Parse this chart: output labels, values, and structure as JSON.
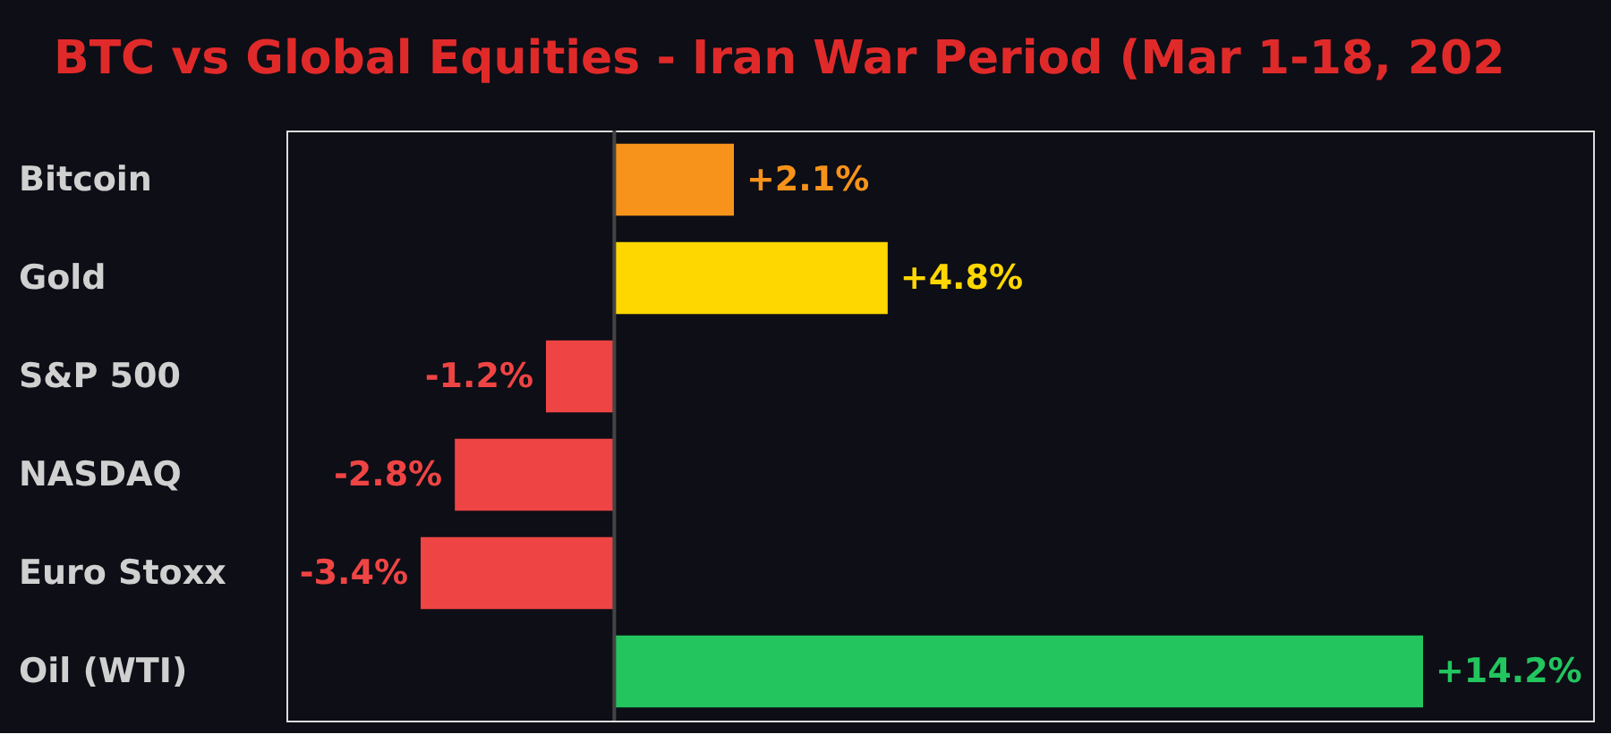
{
  "chart_data": {
    "type": "bar",
    "orientation": "horizontal",
    "title": "BTC vs Global Equities - Iran War Period (Mar 1-18, 202",
    "categories": [
      "Bitcoin",
      "Gold",
      "S&P 500",
      "NASDAQ",
      "Euro Stoxx",
      "Oil (WTI)"
    ],
    "values": [
      2.1,
      4.8,
      -1.2,
      -2.8,
      -3.4,
      14.2
    ],
    "colors": [
      "#f7931a",
      "#ffd700",
      "#ef4444",
      "#ef4444",
      "#ef4444",
      "#22c55e"
    ],
    "value_labels": [
      "+2.1%",
      "+4.8%",
      "-1.2%",
      "-2.8%",
      "-3.4%",
      "+14.2%"
    ],
    "ref_lines": [
      {
        "axis": "x",
        "value": 0,
        "color": "#444444"
      }
    ]
  }
}
